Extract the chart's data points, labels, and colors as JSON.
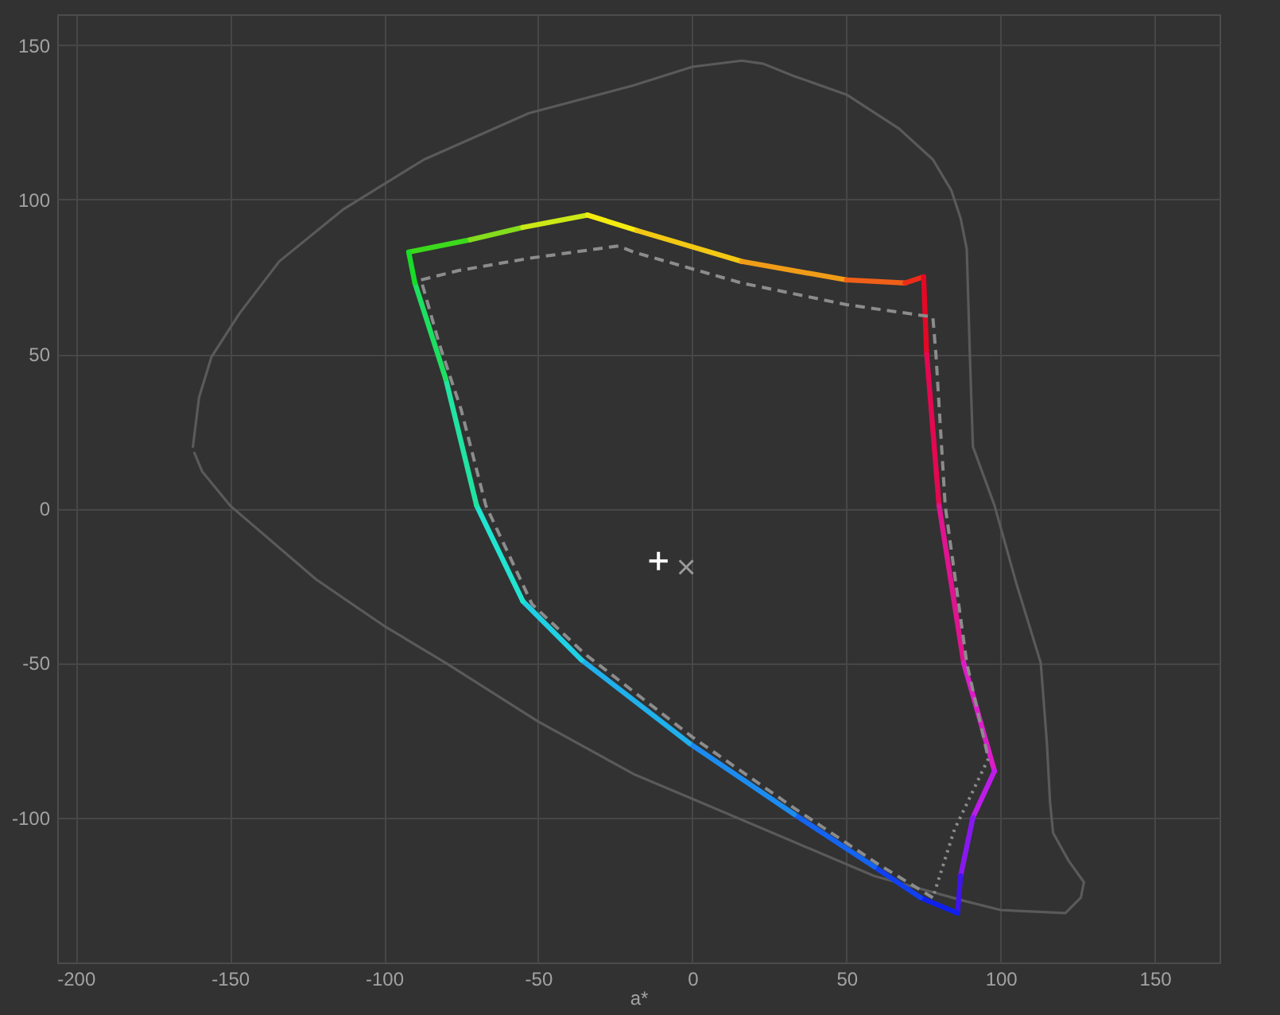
{
  "chart_data": {
    "type": "line",
    "xlabel": "a*",
    "xlim": [
      -206,
      171
    ],
    "ylim": [
      -147,
      160
    ],
    "xticks": [
      -200,
      -150,
      -100,
      -50,
      0,
      50,
      100,
      150
    ],
    "yticks": [
      -100,
      -50,
      0,
      50,
      100,
      150
    ],
    "grid": true,
    "line_style": "solid",
    "series": [
      {
        "color": "#5a5a5a",
        "x": [
          -162,
          -160,
          -156,
          -147,
          -134,
          -113,
          -87,
          -53,
          -19,
          0,
          16,
          23,
          33,
          50,
          67,
          78,
          84,
          87,
          89,
          90,
          91,
          98,
          105,
          113,
          115,
          116,
          117,
          122,
          127,
          126,
          121,
          100,
          88,
          59,
          33,
          0,
          -19,
          -50,
          -80,
          -100,
          -122,
          -150,
          -159,
          -161.5
        ],
        "values": [
          20,
          36,
          49,
          63,
          80,
          97,
          113,
          128,
          137,
          143,
          145,
          144,
          140,
          134,
          123,
          113,
          103,
          94,
          84,
          50,
          20,
          1,
          -24,
          -50,
          -76,
          -95,
          -105,
          -114,
          -121,
          -126,
          -131,
          -130,
          -127,
          -119,
          -108,
          -94,
          -86,
          -69,
          -50,
          -38,
          -23,
          1,
          12,
          18
        ]
      },
      {
        "color": "#3cda1c",
        "x": [
          -92,
          -72
        ],
        "values": [
          83,
          87
        ]
      },
      {
        "color": "#84dc1c",
        "x": [
          -72,
          -55
        ],
        "values": [
          87,
          91
        ]
      },
      {
        "color": "#cce816",
        "x": [
          -55,
          -34
        ],
        "values": [
          91,
          95
        ]
      },
      {
        "color": "#f4ec10",
        "x": [
          -34,
          -18
        ],
        "values": [
          95,
          90
        ]
      },
      {
        "color": "#f2c814",
        "x": [
          -18,
          16
        ],
        "values": [
          90,
          80
        ]
      },
      {
        "color": "#f09c18",
        "x": [
          16,
          50
        ],
        "values": [
          80,
          74
        ]
      },
      {
        "color": "#f06018",
        "x": [
          50,
          69
        ],
        "values": [
          74,
          73
        ]
      },
      {
        "color": "#ec2c18",
        "x": [
          69,
          75
        ],
        "values": [
          73,
          75
        ]
      },
      {
        "color": "#e40824",
        "x": [
          75,
          76
        ],
        "values": [
          75,
          50
        ]
      },
      {
        "color": "#e40850",
        "x": [
          76,
          80
        ],
        "values": [
          50,
          1
        ]
      },
      {
        "color": "#e01490",
        "x": [
          80,
          88
        ],
        "values": [
          1,
          -50
        ]
      },
      {
        "color": "#dc1cc8",
        "x": [
          88,
          98
        ],
        "values": [
          -50,
          -85
        ]
      },
      {
        "color": "#bc1ce8",
        "x": [
          98,
          91
        ],
        "values": [
          -85,
          -100
        ]
      },
      {
        "color": "#8818f0",
        "x": [
          91,
          87
        ],
        "values": [
          -100,
          -119
        ]
      },
      {
        "color": "#4014ec",
        "x": [
          87,
          86
        ],
        "values": [
          -119,
          -131
        ]
      },
      {
        "color": "#1020ec",
        "x": [
          86,
          74
        ],
        "values": [
          -131,
          -126
        ]
      },
      {
        "color": "#1040f0",
        "x": [
          74,
          59
        ],
        "values": [
          -126,
          -116
        ]
      },
      {
        "color": "#1464f0",
        "x": [
          59,
          33
        ],
        "values": [
          -116,
          -99
        ]
      },
      {
        "color": "#1c8cf0",
        "x": [
          33,
          -1
        ],
        "values": [
          -99,
          -76
        ]
      },
      {
        "color": "#20b0ec",
        "x": [
          -1,
          -36
        ],
        "values": [
          -76,
          -49
        ]
      },
      {
        "color": "#20d0e4",
        "x": [
          -36,
          -55
        ],
        "values": [
          -49,
          -30
        ]
      },
      {
        "color": "#20e4d0",
        "x": [
          -55,
          -70
        ],
        "values": [
          -30,
          1
        ]
      },
      {
        "color": "#20e4a0",
        "x": [
          -70,
          -80
        ],
        "values": [
          1,
          42
        ]
      },
      {
        "color": "#1ce060",
        "x": [
          -80,
          -90
        ],
        "values": [
          42,
          73
        ]
      },
      {
        "color": "#18dc28",
        "x": [
          -90,
          -92
        ],
        "values": [
          73,
          83
        ]
      },
      {
        "color": "#8c8c8c",
        "line_style": "dashed",
        "x": [
          -88,
          -76,
          -53,
          -24,
          -19,
          16,
          50,
          78,
          79,
          82,
          89,
          96
        ],
        "values": [
          74,
          77,
          81,
          85,
          83,
          73,
          66,
          62,
          50,
          1,
          -50,
          -81
        ]
      },
      {
        "color": "#8c8c8c",
        "line_style": "dotted",
        "x": [
          96,
          85,
          78
        ],
        "values": [
          -81,
          -104,
          -126
        ]
      },
      {
        "color": "#8c8c8c",
        "line_style": "dashed",
        "x": [
          78,
          60,
          33,
          0,
          -35,
          -52,
          -67,
          -75,
          -82,
          -86,
          -88
        ],
        "values": [
          -126,
          -115,
          -97,
          -74,
          -47,
          -31,
          1,
          32,
          53,
          67,
          74
        ]
      },
      {
        "type": "scatter",
        "color": "#ffffff",
        "marker": "cross",
        "x": [
          -11
        ],
        "values": [
          -17
        ]
      },
      {
        "type": "scatter",
        "color": "#9a9a9a",
        "marker": "x",
        "x": [
          -2
        ],
        "values": [
          -19
        ]
      }
    ]
  }
}
